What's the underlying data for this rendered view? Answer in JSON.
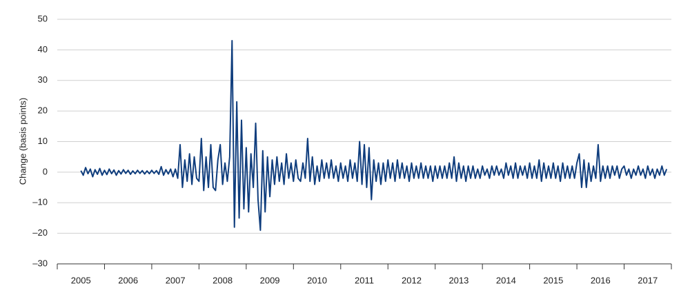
{
  "chart_data": {
    "type": "line",
    "y_label": "Change (basis points)",
    "xlim": [
      2005,
      2018
    ],
    "xticks": [
      {
        "value": 2005,
        "label": "2005"
      },
      {
        "value": 2006,
        "label": "2006"
      },
      {
        "value": 2007,
        "label": "2007"
      },
      {
        "value": 2008,
        "label": "2008"
      },
      {
        "value": 2009,
        "label": "2009"
      },
      {
        "value": 2010,
        "label": "2010"
      },
      {
        "value": 2011,
        "label": "2011"
      },
      {
        "value": 2012,
        "label": "2012"
      },
      {
        "value": 2013,
        "label": "2013"
      },
      {
        "value": 2014,
        "label": "2014"
      },
      {
        "value": 2015,
        "label": "2015"
      },
      {
        "value": 2016,
        "label": "2016"
      },
      {
        "value": 2017,
        "label": "2017"
      }
    ],
    "ylim": [
      -30,
      50
    ],
    "yticks": [
      {
        "value": -30,
        "label": "–30"
      },
      {
        "value": -20,
        "label": "–20"
      },
      {
        "value": -10,
        "label": "–10"
      },
      0,
      10,
      20,
      30,
      40,
      50
    ],
    "grid": true,
    "x": [
      2005.5,
      2005.55,
      2005.6,
      2005.65,
      2005.7,
      2005.75,
      2005.8,
      2005.85,
      2005.9,
      2005.95,
      2006,
      2006.05,
      2006.1,
      2006.15,
      2006.2,
      2006.25,
      2006.3,
      2006.35,
      2006.4,
      2006.45,
      2006.5,
      2006.55,
      2006.6,
      2006.65,
      2006.7,
      2006.75,
      2006.8,
      2006.85,
      2006.9,
      2006.95,
      2007,
      2007.05,
      2007.1,
      2007.15,
      2007.2,
      2007.25,
      2007.3,
      2007.35,
      2007.4,
      2007.45,
      2007.5,
      2007.55,
      2007.6,
      2007.65,
      2007.7,
      2007.75,
      2007.8,
      2007.85,
      2007.9,
      2007.95,
      2008,
      2008.05,
      2008.1,
      2008.15,
      2008.2,
      2008.25,
      2008.3,
      2008.35,
      2008.4,
      2008.45,
      2008.5,
      2008.55,
      2008.6,
      2008.65,
      2008.7,
      2008.75,
      2008.8,
      2008.85,
      2008.9,
      2008.95,
      2009,
      2009.05,
      2009.1,
      2009.15,
      2009.2,
      2009.25,
      2009.3,
      2009.35,
      2009.4,
      2009.45,
      2009.5,
      2009.55,
      2009.6,
      2009.65,
      2009.7,
      2009.75,
      2009.8,
      2009.85,
      2009.9,
      2009.95,
      2010,
      2010.05,
      2010.1,
      2010.15,
      2010.2,
      2010.25,
      2010.3,
      2010.35,
      2010.4,
      2010.45,
      2010.5,
      2010.55,
      2010.6,
      2010.65,
      2010.7,
      2010.75,
      2010.8,
      2010.85,
      2010.9,
      2010.95,
      2011,
      2011.05,
      2011.1,
      2011.15,
      2011.2,
      2011.25,
      2011.3,
      2011.35,
      2011.4,
      2011.45,
      2011.5,
      2011.55,
      2011.6,
      2011.65,
      2011.7,
      2011.75,
      2011.8,
      2011.85,
      2011.9,
      2011.95,
      2012,
      2012.05,
      2012.1,
      2012.15,
      2012.2,
      2012.25,
      2012.3,
      2012.35,
      2012.4,
      2012.45,
      2012.5,
      2012.55,
      2012.6,
      2012.65,
      2012.7,
      2012.75,
      2012.8,
      2012.85,
      2012.9,
      2012.95,
      2013,
      2013.05,
      2013.1,
      2013.15,
      2013.2,
      2013.25,
      2013.3,
      2013.35,
      2013.4,
      2013.45,
      2013.5,
      2013.55,
      2013.6,
      2013.65,
      2013.7,
      2013.75,
      2013.8,
      2013.85,
      2013.9,
      2013.95,
      2014,
      2014.05,
      2014.1,
      2014.15,
      2014.2,
      2014.25,
      2014.3,
      2014.35,
      2014.4,
      2014.45,
      2014.5,
      2014.55,
      2014.6,
      2014.65,
      2014.7,
      2014.75,
      2014.8,
      2014.85,
      2014.9,
      2014.95,
      2015,
      2015.05,
      2015.1,
      2015.15,
      2015.2,
      2015.25,
      2015.3,
      2015.35,
      2015.4,
      2015.45,
      2015.5,
      2015.55,
      2015.6,
      2015.65,
      2015.7,
      2015.75,
      2015.8,
      2015.85,
      2015.9,
      2015.95,
      2016,
      2016.05,
      2016.1,
      2016.15,
      2016.2,
      2016.25,
      2016.3,
      2016.35,
      2016.4,
      2016.45,
      2016.5,
      2016.55,
      2016.6,
      2016.65,
      2016.7,
      2016.75,
      2016.8,
      2016.85,
      2016.9,
      2016.95,
      2017,
      2017.05,
      2017.1,
      2017.15,
      2017.2,
      2017.25,
      2017.3,
      2017.35,
      2017.4,
      2017.45,
      2017.5,
      2017.55,
      2017.6,
      2017.65,
      2017.7,
      2017.75,
      2017.8,
      2017.85,
      2017.9
    ],
    "series": [
      {
        "color": "#0f3d7d",
        "values": [
          0.5,
          -1,
          1.5,
          -0.5,
          1,
          -1.5,
          0.8,
          -0.7,
          1.2,
          -1,
          0.6,
          -0.8,
          1,
          -0.5,
          0.7,
          -1,
          0.5,
          -0.6,
          0.8,
          -0.4,
          0.6,
          -0.7,
          0.4,
          -0.5,
          0.6,
          -0.4,
          0.5,
          -0.6,
          0.4,
          -0.5,
          0.6,
          -0.4,
          0.5,
          -0.7,
          1.8,
          -1,
          0.8,
          -0.6,
          1,
          -1.5,
          1,
          -2,
          9,
          -5,
          4,
          -3,
          6,
          -4,
          5,
          -2,
          -3,
          11,
          -6,
          5,
          -5,
          9,
          -5,
          -6,
          4,
          9,
          -4,
          3,
          -3,
          5,
          43,
          -18,
          23,
          -15,
          17,
          -12,
          8,
          -13,
          6,
          -5,
          16,
          -9,
          -19,
          7,
          -13,
          5,
          -8,
          4,
          -4,
          5,
          -3,
          3,
          -4,
          6,
          -2,
          3,
          -3,
          4,
          -2,
          -3,
          3,
          -2,
          11,
          -3,
          5,
          -4,
          2,
          -3,
          4,
          -2,
          3,
          -2,
          4,
          -2,
          2,
          -3,
          3,
          -2,
          2,
          -3,
          4,
          -2,
          3,
          -3,
          10,
          -4,
          9,
          -5,
          8,
          -9,
          4,
          -3,
          3,
          -4,
          3,
          -3,
          4,
          -2,
          3,
          -3,
          4,
          -2,
          3,
          -2,
          2,
          -3,
          3,
          -2,
          2,
          -2,
          3,
          -2,
          2,
          -2,
          2,
          -3,
          2,
          -2,
          2,
          -2,
          2,
          -2,
          3,
          -2,
          5,
          -3,
          3,
          -2,
          2,
          -3,
          2,
          -2,
          2,
          -2,
          1,
          -2,
          2,
          -1,
          1,
          -2,
          2,
          -1,
          2,
          -1,
          1,
          -2,
          3,
          -1,
          2,
          -2,
          3,
          -2,
          2,
          -1,
          2,
          -2,
          3,
          -2,
          2,
          -2,
          4,
          -3,
          3,
          -2,
          2,
          -2,
          3,
          -2,
          2,
          -3,
          3,
          -2,
          2,
          -2,
          2,
          -2,
          3,
          6,
          -5,
          4,
          -5,
          3,
          -3,
          2,
          -2,
          9,
          -3,
          2,
          -2,
          2,
          -2,
          2,
          -1,
          2,
          -2,
          1,
          2,
          -1,
          1,
          -2,
          1,
          -1,
          2,
          -1,
          1,
          -2,
          2,
          -1,
          1,
          -2,
          1,
          -1,
          2,
          -1,
          1
        ]
      }
    ]
  }
}
